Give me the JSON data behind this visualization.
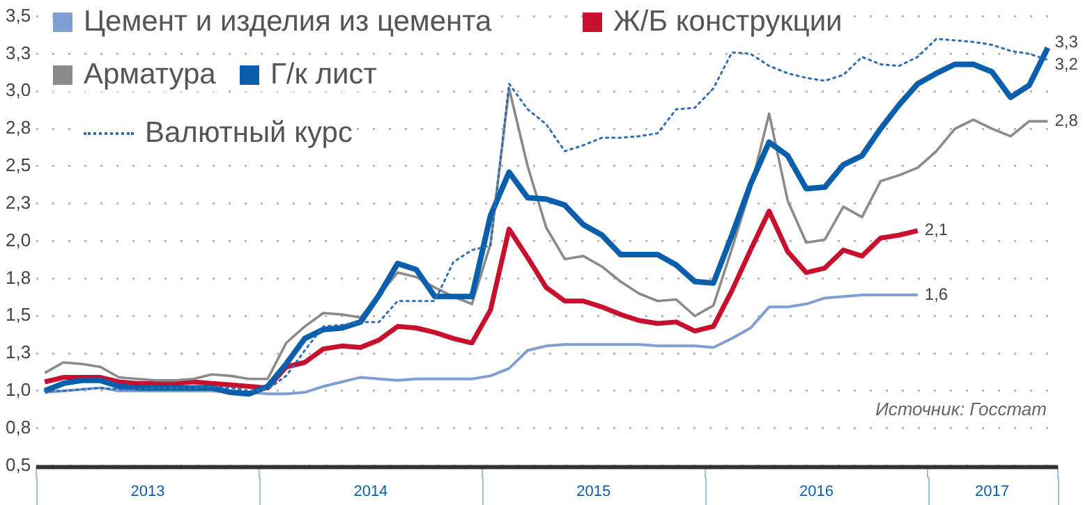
{
  "chart_data": {
    "type": "line",
    "x": [
      "2013-01-15",
      "2013-02-15",
      "2013-03-15",
      "2013-04-15",
      "2013-05-15",
      "2013-06-15",
      "2013-07-15",
      "2013-08-15",
      "2013-09-15",
      "2013-10-15",
      "2013-11-15",
      "2013-12-15",
      "2014-01-15",
      "2014-02-15",
      "2014-03-15",
      "2014-04-15",
      "2014-05-15",
      "2014-06-15",
      "2014-07-15",
      "2014-08-15",
      "2014-09-15",
      "2014-10-15",
      "2014-11-15",
      "2014-12-15",
      "2015-01-15",
      "2015-02-15",
      "2015-03-15",
      "2015-04-15",
      "2015-05-15",
      "2015-06-15",
      "2015-07-15",
      "2015-08-15",
      "2015-09-15",
      "2015-10-15",
      "2015-11-15",
      "2015-12-15",
      "2016-01-15",
      "2016-02-15",
      "2016-03-15",
      "2016-04-15",
      "2016-05-15",
      "2016-06-15",
      "2016-07-15",
      "2016-08-15",
      "2016-09-15",
      "2016-10-15",
      "2016-11-15",
      "2016-12-15",
      "2017-01-15",
      "2017-02-15",
      "2017-03-15",
      "2017-04-15",
      "2017-05-15",
      "2017-06-15",
      "2017-07-15"
    ],
    "series": [
      {
        "name": "Цемент и изделия из цемента",
        "color": "#7f9fd4",
        "values": [
          0.99,
          1.0,
          1.01,
          1.02,
          1.0,
          1.0,
          1.0,
          1.0,
          1.0,
          1.0,
          0.99,
          0.99,
          0.98,
          0.98,
          0.99,
          1.03,
          1.06,
          1.09,
          1.08,
          1.07,
          1.08,
          1.08,
          1.08,
          1.08,
          1.1,
          1.15,
          1.27,
          1.3,
          1.31,
          1.31,
          1.31,
          1.31,
          1.31,
          1.3,
          1.3,
          1.3,
          1.29,
          1.35,
          1.42,
          1.56,
          1.56,
          1.58,
          1.62,
          1.63,
          1.64,
          1.64,
          1.64,
          1.64,
          null,
          null,
          null,
          null,
          null,
          null,
          null
        ]
      },
      {
        "name": "Ж/Б конструкции",
        "color": "#c8102e",
        "values": [
          1.06,
          1.09,
          1.09,
          1.09,
          1.06,
          1.05,
          1.05,
          1.05,
          1.06,
          1.05,
          1.04,
          1.03,
          1.02,
          1.16,
          1.19,
          1.28,
          1.3,
          1.29,
          1.34,
          1.43,
          1.42,
          1.39,
          1.35,
          1.32,
          1.54,
          2.08,
          1.89,
          1.69,
          1.6,
          1.6,
          1.56,
          1.51,
          1.47,
          1.45,
          1.46,
          1.4,
          1.43,
          1.67,
          1.94,
          2.2,
          1.93,
          1.79,
          1.82,
          1.94,
          1.9,
          2.02,
          2.04,
          2.07,
          null,
          null,
          null,
          null,
          null,
          null,
          null
        ]
      },
      {
        "name": "Арматура",
        "color": "#8a8a8a",
        "values": [
          1.12,
          1.19,
          1.18,
          1.16,
          1.09,
          1.08,
          1.07,
          1.07,
          1.08,
          1.11,
          1.1,
          1.08,
          1.08,
          1.32,
          1.43,
          1.52,
          1.51,
          1.49,
          1.64,
          1.79,
          1.76,
          1.69,
          1.63,
          1.58,
          1.98,
          3.02,
          2.5,
          2.09,
          1.88,
          1.9,
          1.83,
          1.73,
          1.65,
          1.6,
          1.61,
          1.5,
          1.57,
          1.95,
          2.35,
          2.85,
          2.27,
          1.99,
          2.01,
          2.23,
          2.16,
          2.4,
          2.44,
          2.49,
          2.6,
          2.75,
          2.81,
          2.75,
          2.7,
          2.8,
          2.8
        ]
      },
      {
        "name": "Г/к лист",
        "color": "#0a5fad",
        "values": [
          1.0,
          1.05,
          1.07,
          1.07,
          1.03,
          1.02,
          1.02,
          1.02,
          1.02,
          1.02,
          0.99,
          0.98,
          1.03,
          1.18,
          1.35,
          1.41,
          1.42,
          1.46,
          1.64,
          1.85,
          1.81,
          1.63,
          1.63,
          1.63,
          2.17,
          2.46,
          2.29,
          2.28,
          2.24,
          2.11,
          2.04,
          1.91,
          1.91,
          1.91,
          1.84,
          1.73,
          1.72,
          2.04,
          2.38,
          2.66,
          2.57,
          2.35,
          2.36,
          2.51,
          2.57,
          2.75,
          2.91,
          3.05,
          3.12,
          3.18,
          3.18,
          3.13,
          2.96,
          3.04,
          3.29
        ]
      },
      {
        "name": "Валютный курс",
        "color": "#2e6db4",
        "line_style": "dotted",
        "values": [
          1.0,
          1.0,
          1.01,
          1.02,
          1.01,
          1.01,
          1.02,
          1.02,
          1.02,
          1.03,
          1.02,
          1.0,
          1.01,
          1.1,
          1.27,
          1.43,
          1.44,
          1.46,
          1.46,
          1.6,
          1.6,
          1.6,
          1.86,
          1.94,
          1.97,
          3.05,
          2.88,
          2.78,
          2.6,
          2.64,
          2.69,
          2.69,
          2.7,
          2.72,
          2.88,
          2.89,
          3.02,
          3.26,
          3.25,
          3.17,
          3.12,
          3.09,
          3.07,
          3.11,
          3.23,
          3.18,
          3.17,
          3.23,
          3.35,
          3.34,
          3.33,
          3.31,
          3.27,
          3.25,
          3.21
        ]
      }
    ],
    "xlim": [
      "2013-01-01",
      "2017-08-01"
    ],
    "xticks": [
      {
        "value": "2013-01-01",
        "label": null
      },
      {
        "value": "2013-07-01",
        "label": "2013"
      },
      {
        "value": "2014-01-01",
        "label": null
      },
      {
        "value": "2014-07-01",
        "label": "2014"
      },
      {
        "value": "2015-01-01",
        "label": null
      },
      {
        "value": "2015-07-01",
        "label": "2015"
      },
      {
        "value": "2016-01-01",
        "label": null
      },
      {
        "value": "2016-07-01",
        "label": "2016"
      },
      {
        "value": "2017-01-01",
        "label": null
      },
      {
        "value": "2017-04-15",
        "label": "2017"
      },
      {
        "value": "2017-08-01",
        "label": null
      }
    ],
    "ylim": [
      0.5,
      3.5
    ],
    "yticks": [
      {
        "value": 0.5,
        "label": "0,5"
      },
      {
        "value": 0.75,
        "label": "0,8"
      },
      {
        "value": 1.0,
        "label": "1,0"
      },
      {
        "value": 1.25,
        "label": "1,3"
      },
      {
        "value": 1.5,
        "label": "1,5"
      },
      {
        "value": 1.75,
        "label": "1,8"
      },
      {
        "value": 2.0,
        "label": "2,0"
      },
      {
        "value": 2.25,
        "label": "2,3"
      },
      {
        "value": 2.5,
        "label": "2,5"
      },
      {
        "value": 2.75,
        "label": "2,8"
      },
      {
        "value": 3.0,
        "label": "3,0"
      },
      {
        "value": 3.25,
        "label": "3,3"
      },
      {
        "value": 3.5,
        "label": "3,5"
      }
    ],
    "grid": "y",
    "legend": "top left",
    "marker": "none",
    "line_style": "solid",
    "annotations": [
      {
        "text": "3,3",
        "x": "2017-07-15",
        "y": 3.29
      },
      {
        "text": "3,2",
        "x": "2017-07-15",
        "y": 3.21
      },
      {
        "text": "2,8",
        "x": "2017-07-15",
        "y": 2.8
      },
      {
        "text": "2,1",
        "x": "2016-12-15",
        "y": 2.07
      },
      {
        "text": "1,6",
        "x": "2016-12-15",
        "y": 1.64
      },
      "Источник: Госстат"
    ]
  }
}
